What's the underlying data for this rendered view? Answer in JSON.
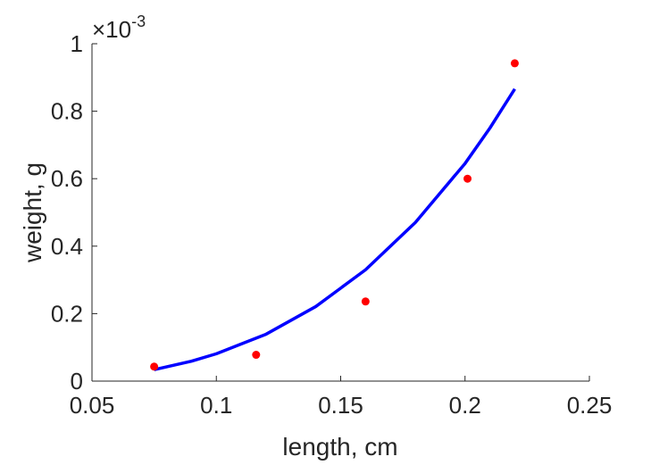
{
  "chart_data": {
    "type": "scatter",
    "title": "",
    "xlabel": "length, cm",
    "ylabel": "weight, g",
    "xlim": [
      0.05,
      0.25
    ],
    "ylim": [
      0,
      0.001
    ],
    "y_exponent_label": "×10",
    "y_exponent_power": "-3",
    "x_ticks": [
      0.05,
      0.1,
      0.15,
      0.2,
      0.25
    ],
    "x_tick_labels": [
      "0.05",
      "0.1",
      "0.15",
      "0.2",
      "0.25"
    ],
    "y_ticks": [
      0,
      0.0002,
      0.0004,
      0.0006,
      0.0008,
      0.001
    ],
    "y_tick_labels": [
      "0",
      "0.2",
      "0.4",
      "0.6",
      "0.8",
      "1"
    ],
    "grid": false,
    "series": [
      {
        "type": "scatter",
        "color": "#ff0000",
        "x": [
          0.075,
          0.116,
          0.16,
          0.201,
          0.22
        ],
        "y": [
          4.3e-05,
          7.8e-05,
          0.000236,
          0.0006,
          0.000942
        ]
      },
      {
        "type": "line",
        "color": "#0000ff",
        "x": [
          0.075,
          0.09,
          0.1,
          0.12,
          0.14,
          0.16,
          0.18,
          0.2,
          0.21,
          0.22
        ],
        "y": [
          3.4e-05,
          5.9e-05,
          8.1e-05,
          0.000139,
          0.000221,
          0.00033,
          0.00047,
          0.000645,
          0.00075,
          0.000866
        ]
      }
    ]
  }
}
